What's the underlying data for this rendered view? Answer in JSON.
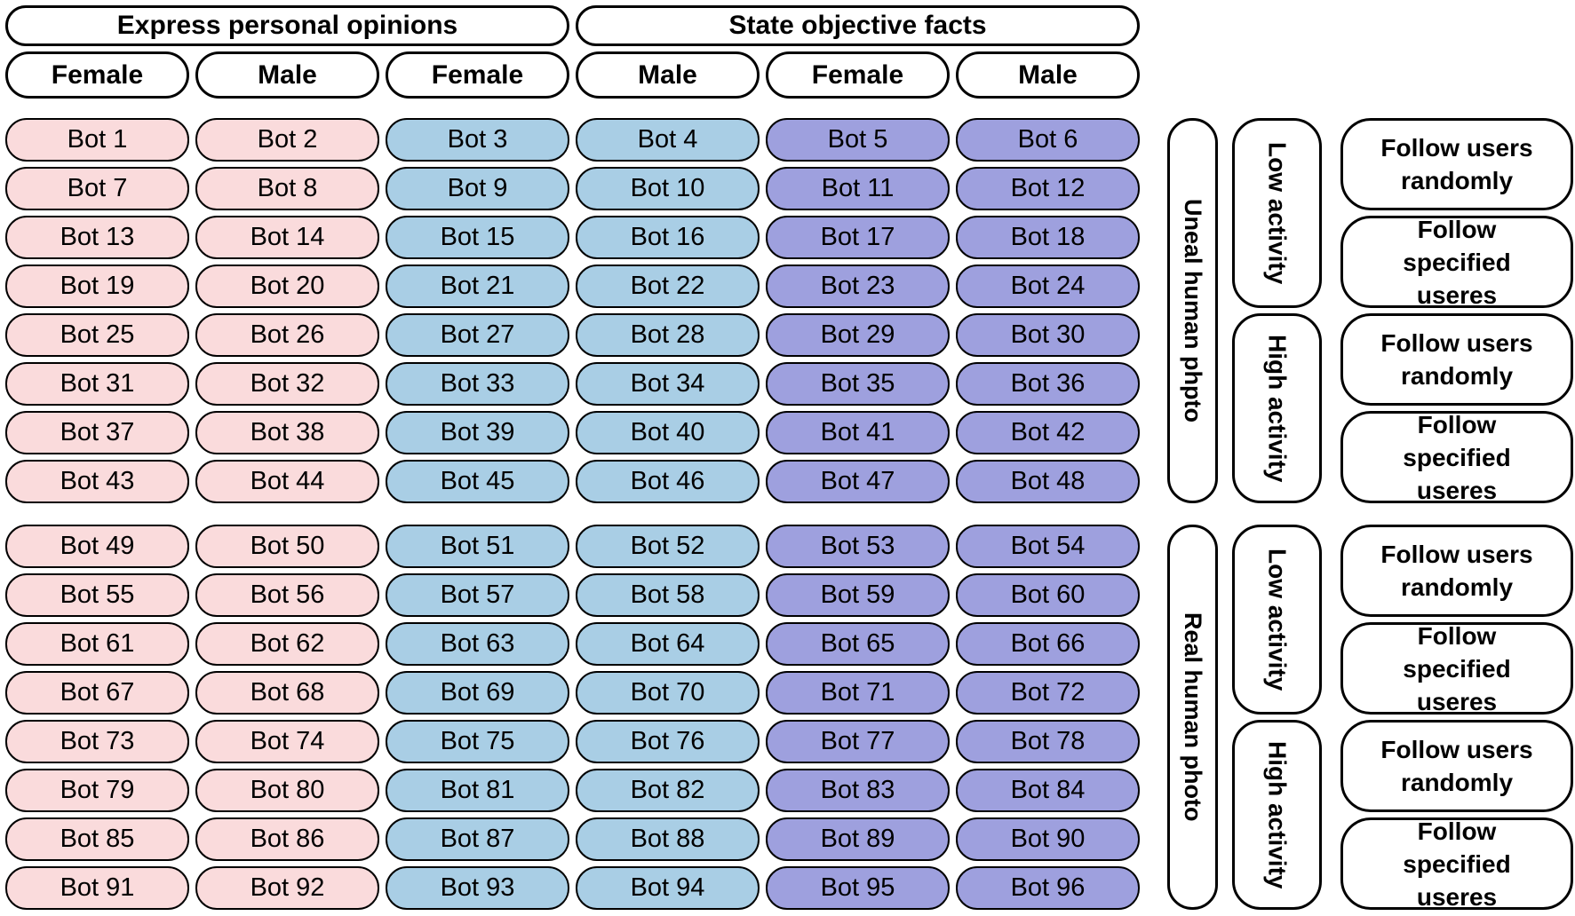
{
  "top_spans": [
    "Express personal opinions",
    "State objective facts"
  ],
  "gender_headers": [
    "Female",
    "Male",
    "Female",
    "Male",
    "Female",
    "Male"
  ],
  "palette": {
    "pink": "#FADBDC",
    "blue": "#A9CEE5",
    "purple": "#9EA0DE",
    "border": "#000000"
  },
  "column_colors": [
    "pink",
    "pink",
    "blue",
    "blue",
    "purple",
    "purple"
  ],
  "bot_rows": [
    [
      "Bot 1",
      "Bot 2",
      "Bot 3",
      "Bot 4",
      "Bot 5",
      "Bot 6"
    ],
    [
      "Bot 7",
      "Bot 8",
      "Bot 9",
      "Bot 10",
      "Bot 11",
      "Bot 12"
    ],
    [
      "Bot 13",
      "Bot 14",
      "Bot 15",
      "Bot 16",
      "Bot 17",
      "Bot 18"
    ],
    [
      "Bot 19",
      "Bot 20",
      "Bot 21",
      "Bot 22",
      "Bot 23",
      "Bot 24"
    ],
    [
      "Bot 25",
      "Bot 26",
      "Bot 27",
      "Bot 28",
      "Bot 29",
      "Bot 30"
    ],
    [
      "Bot 31",
      "Bot 32",
      "Bot 33",
      "Bot 34",
      "Bot 35",
      "Bot 36"
    ],
    [
      "Bot 37",
      "Bot 38",
      "Bot 39",
      "Bot 40",
      "Bot 41",
      "Bot 42"
    ],
    [
      "Bot 43",
      "Bot 44",
      "Bot 45",
      "Bot 46",
      "Bot 47",
      "Bot 48"
    ],
    [
      "Bot 49",
      "Bot 50",
      "Bot 51",
      "Bot 52",
      "Bot 53",
      "Bot 54"
    ],
    [
      "Bot 55",
      "Bot 56",
      "Bot 57",
      "Bot 58",
      "Bot 59",
      "Bot 60"
    ],
    [
      "Bot 61",
      "Bot 62",
      "Bot 63",
      "Bot 64",
      "Bot 65",
      "Bot 66"
    ],
    [
      "Bot 67",
      "Bot 68",
      "Bot 69",
      "Bot 70",
      "Bot 71",
      "Bot 72"
    ],
    [
      "Bot 73",
      "Bot 74",
      "Bot 75",
      "Bot 76",
      "Bot 77",
      "Bot 78"
    ],
    [
      "Bot 79",
      "Bot 80",
      "Bot 81",
      "Bot 82",
      "Bot 83",
      "Bot 84"
    ],
    [
      "Bot 85",
      "Bot 86",
      "Bot 87",
      "Bot 88",
      "Bot 89",
      "Bot 90"
    ],
    [
      "Bot 91",
      "Bot 92",
      "Bot 93",
      "Bot 94",
      "Bot 95",
      "Bot 96"
    ]
  ],
  "right_panel": {
    "groups": [
      {
        "photo_label": "Uneal human phpto",
        "activities": [
          {
            "label": "Low activity",
            "follow": [
              "Follow users randomly",
              "Follow specified useres"
            ]
          },
          {
            "label": "High activity",
            "follow": [
              "Follow users randomly",
              "Follow specified useres"
            ]
          }
        ]
      },
      {
        "photo_label": "Real human photo",
        "activities": [
          {
            "label": "Low activity",
            "follow": [
              "Follow users randomly",
              "Follow specified useres"
            ]
          },
          {
            "label": "High activity",
            "follow": [
              "Follow users randomly",
              "Follow specified useres"
            ]
          }
        ]
      }
    ]
  }
}
